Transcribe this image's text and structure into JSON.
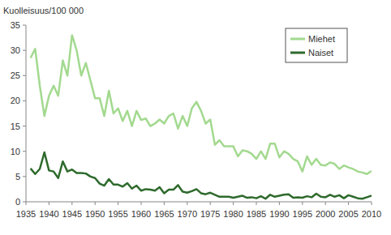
{
  "chart_data": {
    "type": "line",
    "ylabel": "Kuolleisuus/100 000",
    "x": [
      1936,
      1937,
      1938,
      1939,
      1940,
      1941,
      1942,
      1943,
      1944,
      1945,
      1946,
      1947,
      1948,
      1949,
      1950,
      1951,
      1952,
      1953,
      1954,
      1955,
      1956,
      1957,
      1958,
      1959,
      1960,
      1961,
      1962,
      1963,
      1964,
      1965,
      1966,
      1967,
      1968,
      1969,
      1970,
      1971,
      1972,
      1973,
      1974,
      1975,
      1976,
      1977,
      1978,
      1979,
      1980,
      1981,
      1982,
      1983,
      1984,
      1985,
      1986,
      1987,
      1988,
      1989,
      1990,
      1991,
      1992,
      1993,
      1994,
      1995,
      1996,
      1997,
      1998,
      1999,
      2000,
      2001,
      2002,
      2003,
      2004,
      2005,
      2006,
      2007,
      2008,
      2009,
      2010
    ],
    "series": [
      {
        "name": "Miehet",
        "color": "#a3d98f",
        "values": [
          28.5,
          30.3,
          23,
          17,
          21,
          23,
          21,
          28,
          25,
          33,
          30,
          25,
          27.5,
          24,
          20.5,
          20.5,
          17,
          22,
          17.5,
          18.5,
          16,
          18,
          15,
          18,
          16.2,
          16.5,
          15,
          15.5,
          16.3,
          15.5,
          17,
          17.5,
          14.5,
          17,
          15,
          18.5,
          19.8,
          18,
          15.5,
          16.3,
          11.3,
          12.2,
          11,
          11,
          11,
          9,
          10.2,
          10,
          9.5,
          8.5,
          10,
          8.5,
          11.5,
          11.5,
          8.8,
          10,
          9.5,
          8.5,
          8,
          6,
          9,
          7.3,
          8.5,
          7.3,
          7.2,
          7.8,
          7.5,
          6.5,
          7.2,
          6.8,
          6.5,
          6,
          5.8,
          5.5,
          6.1
        ]
      },
      {
        "name": "Naiset",
        "color": "#2e6a2c",
        "values": [
          6.6,
          5.5,
          6.5,
          9.8,
          6.2,
          6,
          4.7,
          8,
          6,
          6.4,
          5.7,
          5.7,
          5.6,
          5,
          4.7,
          3.6,
          3.2,
          4.5,
          3.4,
          3.4,
          3,
          3.7,
          2.6,
          3.2,
          2.2,
          2.5,
          2.4,
          2.2,
          2.9,
          1.7,
          2.4,
          2.4,
          3.3,
          2,
          1.8,
          2.1,
          2.5,
          1.7,
          1.5,
          1.8,
          1.4,
          1,
          1,
          1,
          0.8,
          1,
          1.2,
          0.8,
          0.9,
          0.7,
          1.1,
          0.6,
          1.4,
          1,
          1.2,
          1.4,
          1.5,
          0.8,
          0.9,
          0.8,
          1.1,
          0.9,
          1.6,
          1,
          0.9,
          1.4,
          1,
          1.3,
          0.7,
          1.3,
          1,
          0.7,
          0.6,
          0.9,
          1.2
        ]
      }
    ],
    "xlim": [
      1935,
      2010
    ],
    "xticks": [
      1935,
      1940,
      1945,
      1950,
      1955,
      1960,
      1965,
      1970,
      1975,
      1980,
      1985,
      1990,
      1995,
      2000,
      2005,
      2010
    ],
    "ylim": [
      0,
      35
    ],
    "yticks": [
      0,
      5,
      10,
      15,
      20,
      25,
      30,
      35
    ],
    "grid": false,
    "legend": "upper right"
  }
}
